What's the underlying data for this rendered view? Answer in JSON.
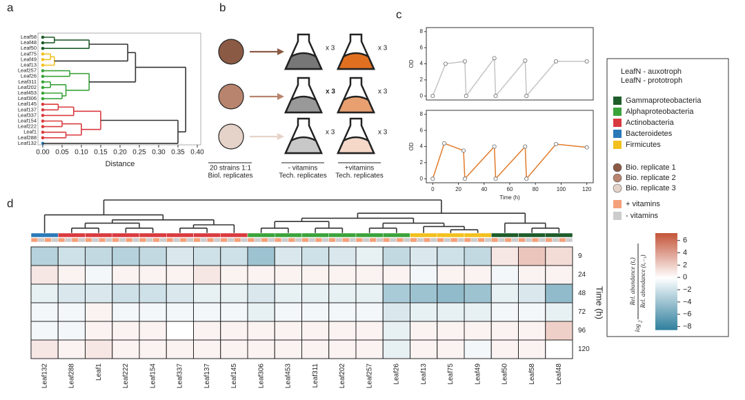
{
  "panel_labels": [
    "a",
    "b",
    "c",
    "d"
  ],
  "chart_data": [
    {
      "type": "dendrogram",
      "x_label": "Distance",
      "xlim": [
        0,
        0.4
      ],
      "xticks": [
        {
          "value": 0,
          "label": "0.00"
        },
        {
          "value": 0.05,
          "label": "0.05"
        },
        {
          "value": 0.1,
          "label": "0.10"
        },
        {
          "value": 0.15,
          "label": "0.15"
        },
        {
          "value": 0.2,
          "label": "0.20"
        },
        {
          "value": 0.25,
          "label": "0.25"
        },
        {
          "value": 0.3,
          "label": "0.30"
        },
        {
          "value": 0.35,
          "label": "0.35"
        },
        {
          "value": 0.4,
          "label": "0.40"
        }
      ],
      "leaves": [
        {
          "name": "Leaf58",
          "color": "#1e5c2a",
          "auxotroph": false
        },
        {
          "name": "Leaf48",
          "color": "#1e5c2a",
          "auxotroph": false
        },
        {
          "name": "Leaf50",
          "color": "#1e5c2a",
          "auxotroph": false
        },
        {
          "name": "Leaf75",
          "color": "#f2c01e",
          "auxotroph": false
        },
        {
          "name": "Leaf49",
          "color": "#f2c01e",
          "auxotroph": true
        },
        {
          "name": "Leaf13",
          "color": "#f2c01e",
          "auxotroph": false
        },
        {
          "name": "Leaf257",
          "color": "#3aa33a",
          "auxotroph": false
        },
        {
          "name": "Leaf26",
          "color": "#3aa33a",
          "auxotroph": false
        },
        {
          "name": "Leaf311",
          "color": "#3aa33a",
          "auxotroph": true
        },
        {
          "name": "Leaf202",
          "color": "#3aa33a",
          "auxotroph": true
        },
        {
          "name": "Leaf453",
          "color": "#3aa33a",
          "auxotroph": false
        },
        {
          "name": "Leaf306",
          "color": "#3aa33a",
          "auxotroph": true
        },
        {
          "name": "Leaf145",
          "color": "#d93a3f",
          "auxotroph": true
        },
        {
          "name": "Leaf137",
          "color": "#d93a3f",
          "auxotroph": true
        },
        {
          "name": "Leaf337",
          "color": "#d93a3f",
          "auxotroph": false
        },
        {
          "name": "Leaf154",
          "color": "#d93a3f",
          "auxotroph": true
        },
        {
          "name": "Leaf222",
          "color": "#d93a3f",
          "auxotroph": true
        },
        {
          "name": "Leaf1",
          "color": "#d93a3f",
          "auxotroph": true
        },
        {
          "name": "Leaf288",
          "color": "#d93a3f",
          "auxotroph": false
        },
        {
          "name": "Leaf132",
          "color": "#2a7ab8",
          "auxotroph": true
        }
      ]
    },
    {
      "type": "line",
      "y_label": "OD",
      "xlim": [
        -5,
        125
      ],
      "ylim": [
        -0.5,
        8.5
      ],
      "yticks": [
        0,
        2,
        4,
        6,
        8
      ],
      "series": [
        {
          "color": "#c4c4c4",
          "x": [
            0,
            10,
            25,
            26,
            48,
            49,
            72,
            73,
            96,
            120
          ],
          "values": [
            0,
            4,
            4.3,
            0,
            4.7,
            0,
            4.4,
            0,
            4.3,
            4.3
          ]
        }
      ]
    },
    {
      "type": "line",
      "y_label": "OD",
      "x_label": "Time (h)",
      "xlim": [
        -5,
        125
      ],
      "ylim": [
        -0.5,
        8.5
      ],
      "xticks": [
        0,
        20,
        40,
        60,
        80,
        100,
        120
      ],
      "yticks": [
        0,
        2,
        4,
        6,
        8
      ],
      "series": [
        {
          "color": "#e07a2a",
          "x": [
            0,
            9,
            24,
            25,
            48,
            49,
            72,
            73,
            96,
            120
          ],
          "values": [
            0,
            4.4,
            3.5,
            0,
            4,
            0,
            4,
            0,
            4.3,
            3.9
          ]
        }
      ]
    },
    {
      "type": "heatmap",
      "y_label": "Time (h)",
      "rows": [
        9,
        24,
        48,
        72,
        96,
        120
      ],
      "columns": [
        {
          "name": "Leaf132",
          "color": "#2a7ab8",
          "auxotroph": true
        },
        {
          "name": "Leaf288",
          "color": "#d93a3f",
          "auxotroph": false
        },
        {
          "name": "Leaf1",
          "color": "#d93a3f",
          "auxotroph": true
        },
        {
          "name": "Leaf222",
          "color": "#d93a3f",
          "auxotroph": true
        },
        {
          "name": "Leaf154",
          "color": "#d93a3f",
          "auxotroph": true
        },
        {
          "name": "Leaf337",
          "color": "#d93a3f",
          "auxotroph": false
        },
        {
          "name": "Leaf137",
          "color": "#d93a3f",
          "auxotroph": true
        },
        {
          "name": "Leaf145",
          "color": "#d93a3f",
          "auxotroph": true
        },
        {
          "name": "Leaf306",
          "color": "#3aa33a",
          "auxotroph": true
        },
        {
          "name": "Leaf453",
          "color": "#3aa33a",
          "auxotroph": false
        },
        {
          "name": "Leaf311",
          "color": "#3aa33a",
          "auxotroph": true
        },
        {
          "name": "Leaf202",
          "color": "#3aa33a",
          "auxotroph": true
        },
        {
          "name": "Leaf257",
          "color": "#3aa33a",
          "auxotroph": false
        },
        {
          "name": "Leaf26",
          "color": "#3aa33a",
          "auxotroph": false
        },
        {
          "name": "Leaf13",
          "color": "#f2c01e",
          "auxotroph": false
        },
        {
          "name": "Leaf75",
          "color": "#f2c01e",
          "auxotroph": false
        },
        {
          "name": "Leaf49",
          "color": "#f2c01e",
          "auxotroph": true
        },
        {
          "name": "Leaf50",
          "color": "#1e5c2a",
          "auxotroph": false
        },
        {
          "name": "Leaf58",
          "color": "#1e5c2a",
          "auxotroph": false
        },
        {
          "name": "Leaf48",
          "color": "#1e5c2a",
          "auxotroph": false
        }
      ],
      "values": [
        [
          -3,
          -2,
          -2.5,
          -3,
          -2.5,
          -1.5,
          -2,
          -2,
          -4,
          -1.5,
          -2,
          -1.5,
          -1,
          -2.5,
          -1.5,
          -2,
          -2.5,
          1,
          2.5,
          1.5
        ],
        [
          1,
          0.5,
          -0.5,
          0.5,
          0.5,
          0.5,
          1,
          0.5,
          0.5,
          0.5,
          0.5,
          0.5,
          0.5,
          0.5,
          -0.5,
          0.5,
          0.5,
          -0.5,
          0.5,
          0.5
        ],
        [
          -1,
          -1.5,
          -1.5,
          -2,
          -2,
          -1.5,
          -1,
          -1,
          -1.5,
          -1,
          -1,
          -1,
          -1,
          -3.5,
          -4,
          -4.5,
          -4,
          -1,
          -1.5,
          -4.5
        ],
        [
          -0.5,
          -0.5,
          0.5,
          -0.5,
          -0.5,
          -0.5,
          -0.5,
          -0.5,
          -1,
          -0.5,
          -0.5,
          -0.5,
          -0.5,
          -1.5,
          -1,
          -1,
          -1,
          -0.5,
          -0.5,
          -1
        ],
        [
          -0.5,
          -0.5,
          0.5,
          0.5,
          0.5,
          0,
          0.5,
          0.5,
          0.5,
          0.5,
          0.5,
          0.5,
          0.5,
          -1,
          0.5,
          0.5,
          0.5,
          0.5,
          0.5,
          2
        ],
        [
          1,
          0.5,
          1,
          0.5,
          0.5,
          0.5,
          0.5,
          0.5,
          0.5,
          0.5,
          0.5,
          0.5,
          0.5,
          -1,
          0.5,
          0.5,
          -0.5,
          0.5,
          0.5,
          0
        ]
      ],
      "zlim": [
        -8.5,
        7.2
      ],
      "colors": [
        "#2f7f9d",
        "#ffffff",
        "#c4553a"
      ],
      "colorbar_ticks": [
        6,
        4,
        2,
        0,
        {
          "value": -2,
          "label": "−2"
        },
        {
          "value": -4,
          "label": "−4"
        },
        {
          "value": -6,
          "label": "−6"
        },
        {
          "value": -8,
          "label": "−8"
        }
      ],
      "colorbar_label": {
        "prefix": "log",
        "sub": "2",
        "numerator": "Rel. abundance (tₓ)",
        "denominator": "Rel. abundance (tₓ₋₁)"
      }
    }
  ],
  "schematic": {
    "multipliers": [
      "x 3",
      "x 3",
      "x 3",
      "x 3",
      "x 3",
      "x 3"
    ],
    "captions": [
      "20 strains  1:1",
      "Biol. replicates",
      "- vitamins",
      "Tech. replicates",
      "+vitamins",
      "Tech. replicates"
    ]
  },
  "legend": {
    "strain_types": [
      {
        "label": "LeafN - auxotroph",
        "color": "#222222"
      },
      {
        "label": "LeafN - prototroph",
        "color": "#aaaaaa"
      }
    ],
    "phyla": [
      {
        "label": "Gammaproteobacteria",
        "color": "#1e5c2a"
      },
      {
        "label": "Alphaproteobacteria",
        "color": "#3aa33a"
      },
      {
        "label": "Actinobacteria",
        "color": "#d93a3f"
      },
      {
        "label": "Bacteroidetes",
        "color": "#2a7ab8"
      },
      {
        "label": "Firmicutes",
        "color": "#f2c01e"
      }
    ],
    "replicates": [
      {
        "label": "Bio. replicate 1",
        "color": "#8b5a44"
      },
      {
        "label": "Bio. replicate 2",
        "color": "#b8846e"
      },
      {
        "label": "Bio. replicate 3",
        "color": "#e5d2c8"
      }
    ],
    "vitamins": [
      {
        "label": "+ vitamins",
        "color": "#f4a07a"
      },
      {
        "label": "- vitamins",
        "color": "#cccccc"
      }
    ]
  }
}
